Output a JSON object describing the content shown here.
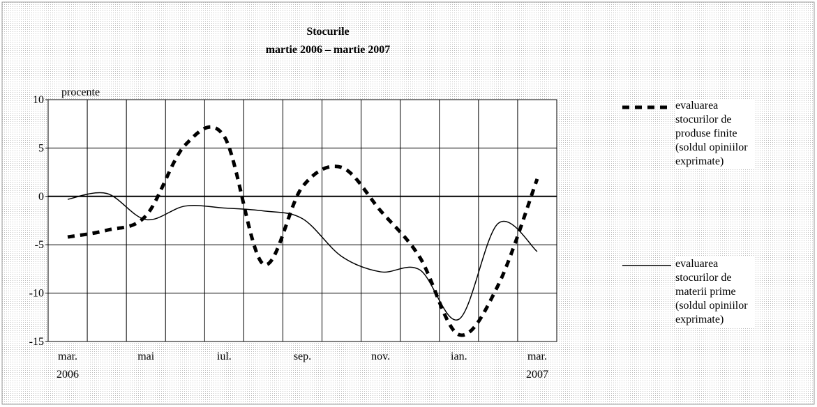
{
  "chart_data": {
    "type": "line",
    "title": "Stocurile",
    "subtitle": "martie 2006 – martie 2007",
    "y_label": "procente",
    "categories": [
      "mar. 2006",
      null,
      "mai",
      null,
      "iul.",
      null,
      "sep.",
      null,
      "nov.",
      null,
      "ian.",
      null,
      "mar. 2007"
    ],
    "series": [
      {
        "name": "evaluarea stocurilor de produse finite (soldul opiniilor exprimate)",
        "color": "#000000",
        "dash": true,
        "values": [
          -4.2,
          -3.5,
          -2.0,
          5.3,
          6.2,
          -7.0,
          1.0,
          3.0,
          -1.5,
          -6.3,
          -14.3,
          -9.2,
          1.8
        ]
      },
      {
        "name": "evaluarea stocurilor de materii prime (soldul opiniilor exprimate)",
        "color": "#000000",
        "dash": false,
        "values": [
          -0.3,
          0.3,
          -2.4,
          -1.0,
          -1.2,
          -1.5,
          -2.3,
          -6.2,
          -7.8,
          -7.6,
          -12.7,
          -2.8,
          -5.7
        ]
      }
    ],
    "ylim": [
      -15,
      10
    ],
    "yticks": [
      -15,
      -10,
      -5,
      0,
      5,
      10
    ],
    "grid": true
  }
}
